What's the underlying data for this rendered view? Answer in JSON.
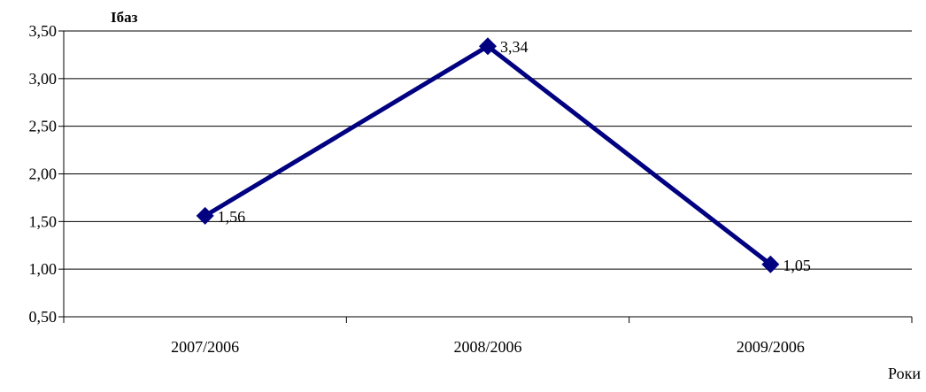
{
  "chart_data": {
    "type": "line",
    "title": "",
    "ylabel": "Ібаз",
    "xlabel": "Роки",
    "categories": [
      "2007/2006",
      "2008/2006",
      "2009/2006"
    ],
    "series": [
      {
        "values": [
          1.56,
          3.34,
          1.05
        ],
        "data_labels": [
          "1,56",
          "3,34",
          "1,05"
        ],
        "color": "#000080",
        "marker": "diamond"
      }
    ],
    "ylim": [
      0.5,
      3.5
    ],
    "yticks": [
      0.5,
      1.0,
      1.5,
      2.0,
      2.5,
      3.0,
      3.5
    ],
    "ytick_labels": [
      "0,50",
      "1,00",
      "1,50",
      "2,00",
      "2,50",
      "3,00",
      "3,50"
    ],
    "grid": "horizontal",
    "legend": "none"
  }
}
